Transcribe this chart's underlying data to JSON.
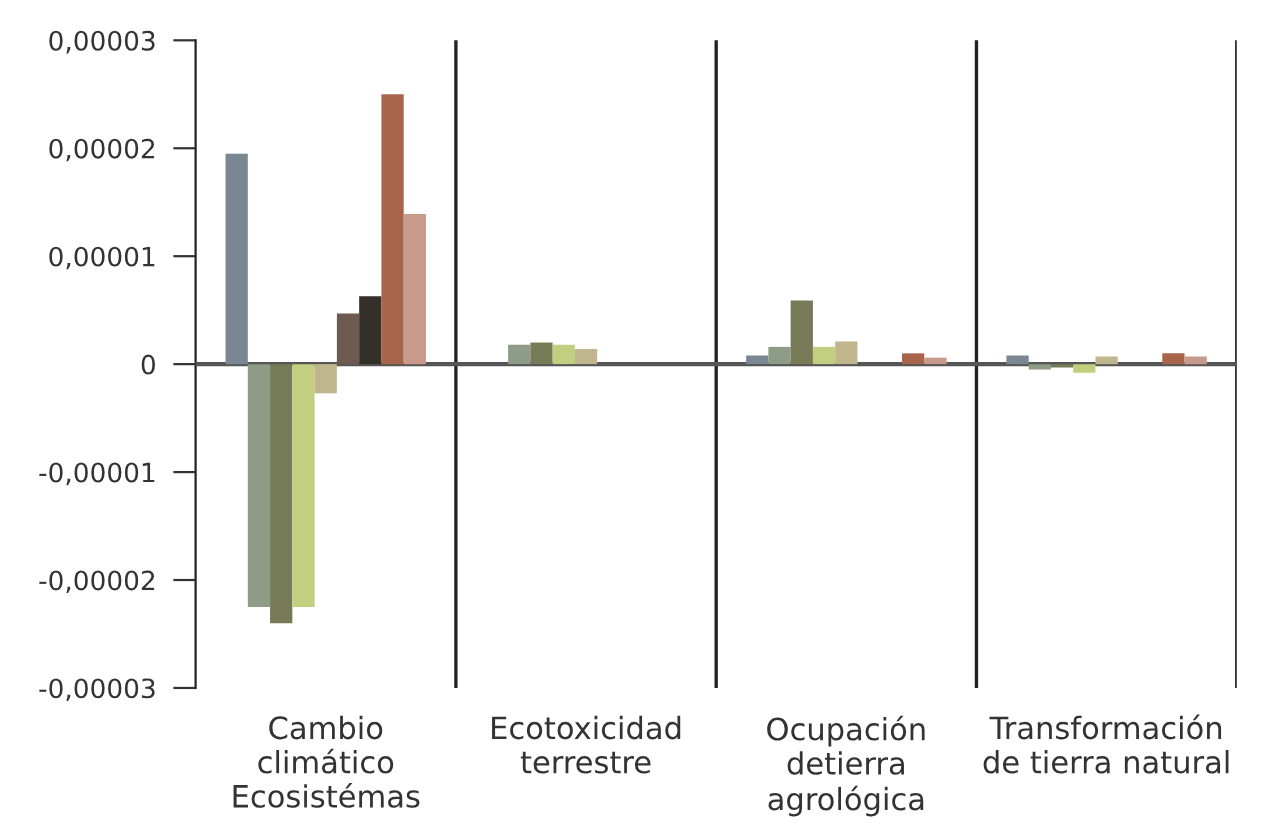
{
  "chart_data": {
    "type": "bar",
    "categories": [
      "Cambio\nclimático\nEcosistémas",
      "Ecotoxicidad\nterrestre",
      "Ocupación\ndetierra\nagrológica",
      "Transformación\nde tierra natural"
    ],
    "series": [
      {
        "color": "#7a8793",
        "values": [
          1.95e-05,
          null,
          8e-07,
          8e-07
        ]
      },
      {
        "color": "#8e9c87",
        "values": [
          -2.25e-05,
          1.8e-06,
          1.6e-06,
          -5e-07
        ]
      },
      {
        "color": "#767a56",
        "values": [
          -2.4e-05,
          2e-06,
          5.9e-06,
          -3e-07
        ]
      },
      {
        "color": "#c2cf80",
        "values": [
          -2.25e-05,
          1.8e-06,
          1.6e-06,
          -8e-07
        ]
      },
      {
        "color": "#c0b68e",
        "values": [
          -2.7e-06,
          1.4e-06,
          2.1e-06,
          7e-07
        ]
      },
      {
        "color": "#6c5b4e",
        "values": [
          4.7e-06,
          null,
          null,
          null
        ]
      },
      {
        "color": "#332f29",
        "values": [
          6.3e-06,
          null,
          null,
          null
        ]
      },
      {
        "color": "#a8654b",
        "values": [
          2.5e-05,
          null,
          1e-06,
          1e-06
        ]
      },
      {
        "color": "#c89a8a",
        "values": [
          1.39e-05,
          null,
          6e-07,
          7e-07
        ]
      }
    ],
    "ylim": [
      -3e-05,
      3e-05
    ],
    "yticks": [
      {
        "value": -3e-05,
        "label": "-0,00003"
      },
      {
        "value": -2e-05,
        "label": "-0,00002"
      },
      {
        "value": -1e-05,
        "label": "-0,00001"
      },
      0,
      {
        "value": 1e-05,
        "label": "0,00001"
      },
      {
        "value": 2e-05,
        "label": "0,00002"
      },
      {
        "value": 3e-05,
        "label": "0,00003"
      }
    ],
    "grid": "x"
  }
}
